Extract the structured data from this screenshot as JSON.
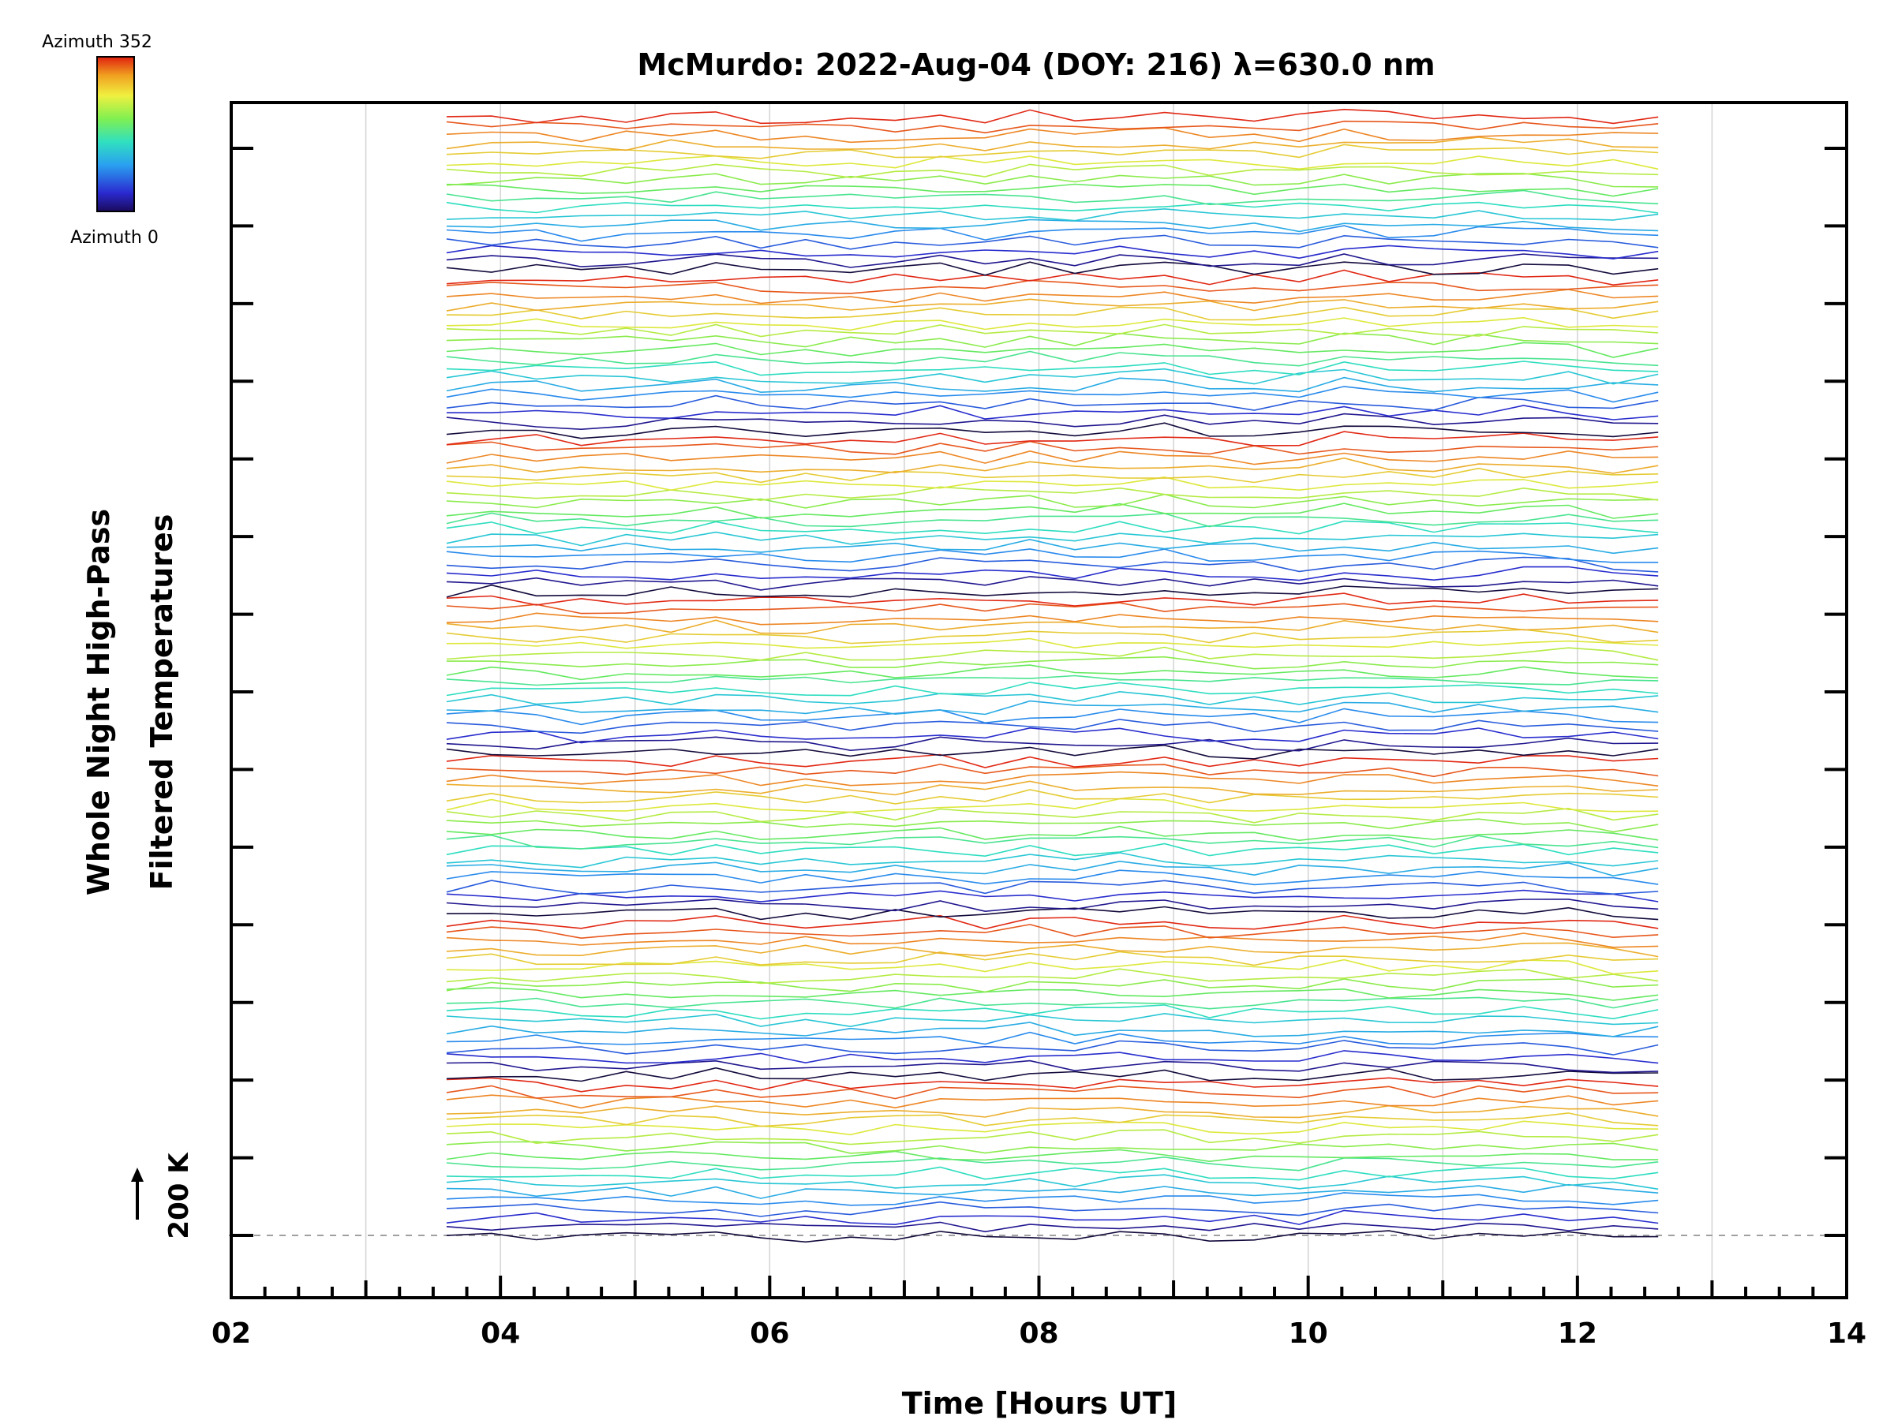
{
  "chart_data": {
    "type": "line",
    "title": "McMurdo: 2022-Aug-04 (DOY: 216) λ=630.0 nm",
    "xlabel": "Time [Hours UT]",
    "ylabel_line1": "Whole Night High-Pass",
    "ylabel_line2": "Filtered Temperatures",
    "xlim": [
      2,
      14
    ],
    "x_ticks": [
      "02",
      "04",
      "06",
      "08",
      "10",
      "12",
      "14"
    ],
    "grid": "vertical gridlines at each hour",
    "scale_marker": "200 K",
    "colorbar": {
      "top_label": "Azimuth 352",
      "bottom_label": "Azimuth 0",
      "colormap": "rainbow (dark blue to red)"
    },
    "num_series": 126,
    "series_offset_K": 7,
    "time_start": 3.6,
    "time_end": 12.6,
    "num_time_samples": 28,
    "colors": {
      "axis": "#000000",
      "grid": "#d3d3d3",
      "baseline": "#a0a0a0",
      "background": "#ffffff"
    }
  }
}
